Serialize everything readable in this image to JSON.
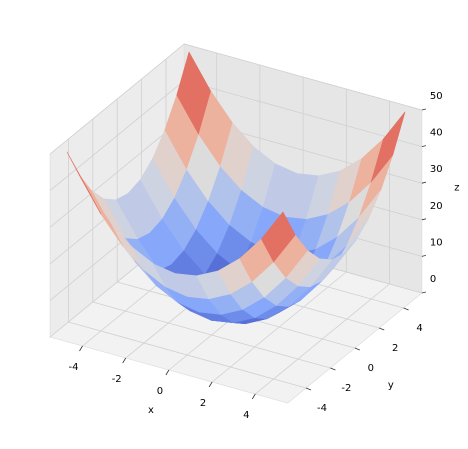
{
  "chart_data": {
    "type": "surface",
    "colormap": "coolwarm",
    "x_label": "x",
    "y_label": "y",
    "z_label": "z",
    "x": [
      -5,
      -4,
      -3,
      -2,
      -1,
      0,
      1,
      2,
      3,
      4,
      5
    ],
    "y": [
      -5,
      -4,
      -3,
      -2,
      -1,
      0,
      1,
      2,
      3,
      4,
      5
    ],
    "z": [
      [
        50,
        41,
        34,
        29,
        26,
        25,
        26,
        29,
        34,
        41,
        50
      ],
      [
        41,
        32,
        25,
        20,
        17,
        16,
        17,
        20,
        25,
        32,
        41
      ],
      [
        34,
        25,
        18,
        13,
        10,
        9,
        10,
        13,
        18,
        25,
        34
      ],
      [
        29,
        20,
        13,
        8,
        5,
        4,
        5,
        8,
        13,
        20,
        29
      ],
      [
        26,
        17,
        10,
        5,
        2,
        1,
        2,
        5,
        10,
        17,
        26
      ],
      [
        25,
        16,
        9,
        4,
        1,
        0,
        1,
        4,
        9,
        16,
        25
      ],
      [
        26,
        17,
        10,
        5,
        2,
        1,
        2,
        5,
        10,
        17,
        26
      ],
      [
        29,
        20,
        13,
        8,
        5,
        4,
        5,
        8,
        13,
        20,
        29
      ],
      [
        34,
        25,
        18,
        13,
        10,
        9,
        10,
        13,
        18,
        25,
        34
      ],
      [
        41,
        32,
        25,
        20,
        17,
        16,
        17,
        20,
        25,
        32,
        41
      ],
      [
        50,
        41,
        34,
        29,
        26,
        25,
        26,
        29,
        34,
        41,
        50
      ]
    ],
    "xlim": [
      -5,
      5
    ],
    "ylim": [
      -5,
      5
    ],
    "zlim": [
      0,
      50
    ],
    "xticks": [
      -4,
      -2,
      0,
      2,
      4
    ],
    "yticks": [
      -4,
      -2,
      0,
      2,
      4
    ],
    "zticks": [
      0,
      10,
      20,
      30,
      40,
      50
    ],
    "grid": true
  }
}
